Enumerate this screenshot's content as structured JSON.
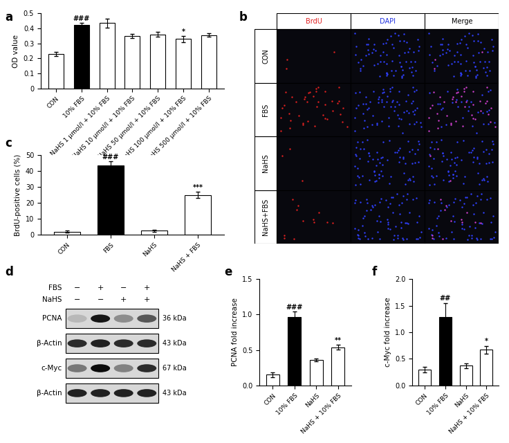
{
  "chart_data": [
    {
      "panel": "a",
      "type": "bar",
      "y_label": "OD value",
      "categories": [
        "CON",
        "10% FBS",
        "NaHS 1 µmol/l + 10% FBS",
        "NaHS 10 µmol/l + 10% FBS",
        "NaHS 50 µmol/l + 10% FBS",
        "NaHS 100 µmol/l + 10% FBS",
        "NaHS 500 µmol/l + 10% FBS"
      ],
      "values": [
        0.23,
        0.425,
        0.435,
        0.35,
        0.36,
        0.33,
        0.355
      ],
      "errors": [
        0.015,
        0.01,
        0.03,
        0.015,
        0.015,
        0.02,
        0.012
      ],
      "colors": [
        "#ffffff",
        "#000000",
        "#ffffff",
        "#ffffff",
        "#ffffff",
        "#ffffff",
        "#ffffff"
      ],
      "annotations": [
        {
          "index": 1,
          "text": "###"
        },
        {
          "index": 5,
          "text": "*"
        }
      ],
      "ylim": [
        0,
        0.5
      ],
      "yticks": [
        0,
        0.1,
        0.2,
        0.3,
        0.4,
        0.5
      ],
      "grid": false
    },
    {
      "panel": "c",
      "type": "bar",
      "y_label": "BrdU-positive cells (%)",
      "categories": [
        "CON",
        "FBS",
        "NaHS",
        "NaHS + FBS"
      ],
      "values": [
        2,
        43.5,
        2.5,
        25
      ],
      "errors": [
        0.5,
        2.5,
        0.5,
        2
      ],
      "colors": [
        "#ffffff",
        "#000000",
        "#ffffff",
        "#ffffff"
      ],
      "annotations": [
        {
          "index": 1,
          "text": "###"
        },
        {
          "index": 3,
          "text": "***"
        }
      ],
      "ylim": [
        0,
        50
      ],
      "yticks": [
        0,
        10,
        20,
        30,
        40,
        50
      ],
      "grid": false
    },
    {
      "panel": "e",
      "type": "bar",
      "y_label": "PCNA fold increase",
      "categories": [
        "CON",
        "10% FBS",
        "NaHS",
        "NaHS + 10% FBS"
      ],
      "values": [
        0.15,
        0.96,
        0.36,
        0.54
      ],
      "errors": [
        0.03,
        0.08,
        0.02,
        0.03
      ],
      "colors": [
        "#ffffff",
        "#000000",
        "#ffffff",
        "#ffffff"
      ],
      "annotations": [
        {
          "index": 1,
          "text": "###"
        },
        {
          "index": 3,
          "text": "**"
        }
      ],
      "ylim": [
        0,
        1.5
      ],
      "yticks": [
        {
          "value": 0,
          "label": "0.0"
        },
        0.5,
        {
          "value": 1,
          "label": "1.0"
        },
        1.5
      ],
      "grid": false
    },
    {
      "panel": "f",
      "type": "bar",
      "y_label": "c-Myc fold increase",
      "categories": [
        "CON",
        "10% FBS",
        "NaHS",
        "NaHS + 10% FBS"
      ],
      "values": [
        0.3,
        1.28,
        0.37,
        0.67
      ],
      "errors": [
        0.05,
        0.27,
        0.05,
        0.07
      ],
      "colors": [
        "#ffffff",
        "#000000",
        "#ffffff",
        "#ffffff"
      ],
      "annotations": [
        {
          "index": 1,
          "text": "##"
        },
        {
          "index": 3,
          "text": "*"
        }
      ],
      "ylim": [
        0,
        2.0
      ],
      "yticks": [
        {
          "value": 0,
          "label": "0.0"
        },
        0.5,
        {
          "value": 1,
          "label": "1.0"
        },
        1.5,
        {
          "value": 2,
          "label": "2.0"
        }
      ],
      "grid": false
    }
  ],
  "image_panel": {
    "panel": "b",
    "columns": [
      {
        "label": "BrdU",
        "color": "#e02020"
      },
      {
        "label": "DAPI",
        "color": "#2030e0"
      },
      {
        "label": "Merge",
        "color": "#000000"
      }
    ],
    "rows": [
      "CON",
      "FBS",
      "NaHS",
      "NaHS+FBS"
    ]
  },
  "blot_panel": {
    "panel": "d",
    "conditions": [
      {
        "name": "FBS",
        "signs": [
          "−",
          "+",
          "−",
          "+"
        ]
      },
      {
        "name": "NaHS",
        "signs": [
          "−",
          "−",
          "+",
          "+"
        ]
      }
    ],
    "rows": [
      {
        "label": "PCNA",
        "size": "36 kDa",
        "band_intensity": [
          0.15,
          0.9,
          0.35,
          0.6
        ]
      },
      {
        "label": "β-Actin",
        "size": "43 kDa",
        "band_intensity": [
          0.8,
          0.85,
          0.8,
          0.8
        ]
      },
      {
        "label": "c-Myc",
        "size": "67 kDa",
        "band_intensity": [
          0.45,
          0.95,
          0.4,
          0.8
        ]
      },
      {
        "label": "β-Actin",
        "size": "43 kDa",
        "band_intensity": [
          0.85,
          0.85,
          0.85,
          0.85
        ]
      }
    ]
  }
}
